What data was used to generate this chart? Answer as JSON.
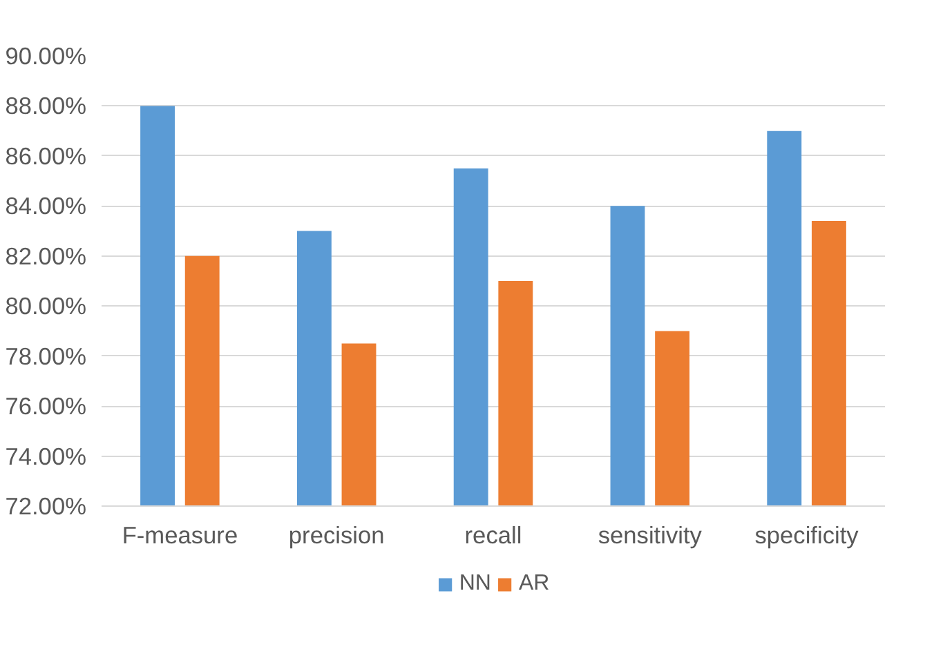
{
  "chart_data": {
    "type": "bar",
    "categories": [
      "F-measure",
      "precision",
      "recall",
      "sensitivity",
      "specificity"
    ],
    "series": [
      {
        "name": "NN",
        "color": "#5b9bd5",
        "values": [
          88,
          83,
          85.5,
          84,
          87
        ]
      },
      {
        "name": "AR",
        "color": "#ed7d31",
        "values": [
          82,
          78.5,
          81,
          79,
          83.4
        ]
      }
    ],
    "ylim": [
      72,
      90
    ],
    "yticks": [
      {
        "value": 72,
        "label": "72.00%"
      },
      {
        "value": 74,
        "label": "74.00%"
      },
      {
        "value": 76,
        "label": "76.00%"
      },
      {
        "value": 78,
        "label": "78.00%"
      },
      {
        "value": 80,
        "label": "80.00%"
      },
      {
        "value": 82,
        "label": "82.00%"
      },
      {
        "value": 84,
        "label": "84.00%"
      },
      {
        "value": 86,
        "label": "86.00%"
      },
      {
        "value": 88,
        "label": "88.00%"
      },
      {
        "value": 90,
        "label": "90.00%"
      }
    ],
    "grid": "y",
    "legend": "bottom"
  }
}
